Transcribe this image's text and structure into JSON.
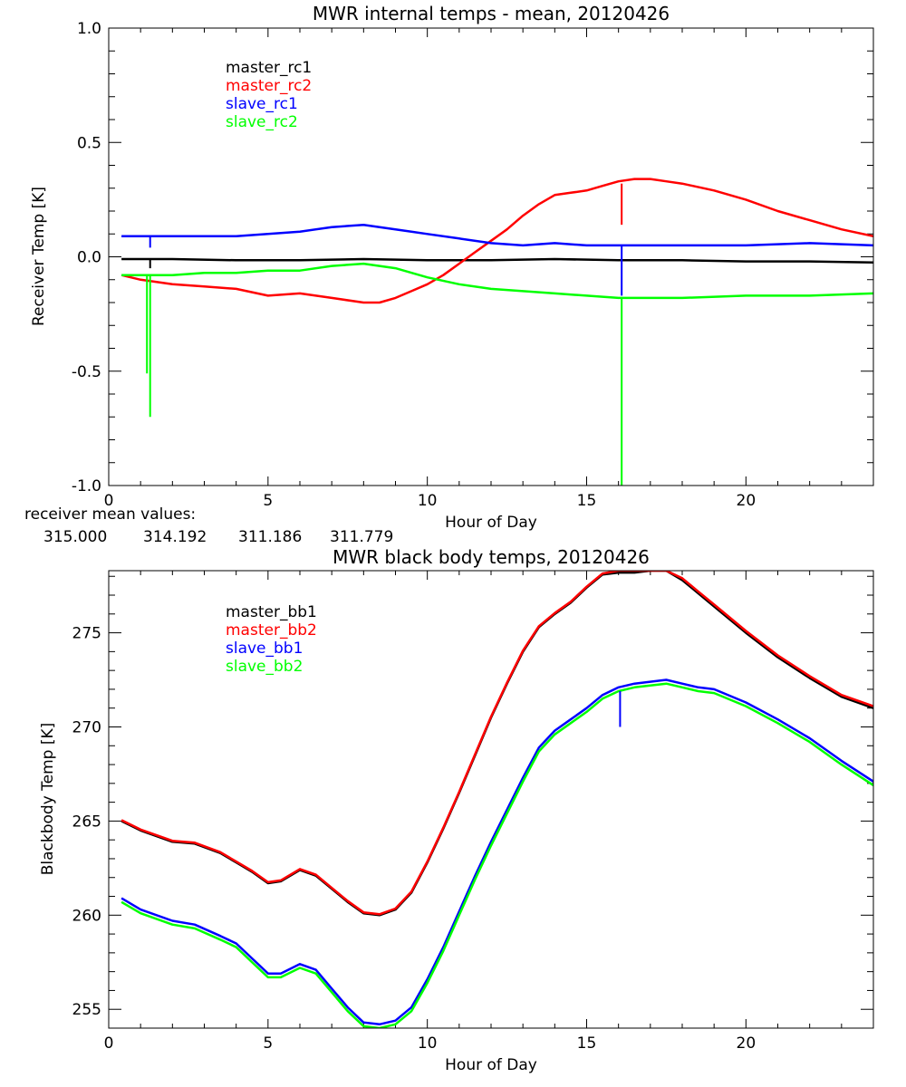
{
  "colors": {
    "black": "#000000",
    "red": "#ff0000",
    "blue": "#0000ff",
    "green": "#00ff00"
  },
  "chart_data": [
    {
      "type": "line",
      "title": "MWR internal temps - mean, 20120426",
      "xlabel": "Hour of Day",
      "ylabel": "Receiver Temp [K]",
      "xlim": [
        0,
        24
      ],
      "ylim": [
        -1.0,
        1.0
      ],
      "xticks": [
        0,
        5,
        10,
        15,
        20
      ],
      "xtick_labels": [
        "0",
        "5",
        "10",
        "15",
        "20"
      ],
      "yticks": [
        -1.0,
        -0.5,
        0.0,
        0.5,
        1.0
      ],
      "ytick_labels": [
        "-1.0",
        "-0.5",
        "0.0",
        "0.5",
        "1.0"
      ],
      "legend_placement": "top-left",
      "series": [
        {
          "name": "master_rc1",
          "color": "#000000",
          "x": [
            0.4,
            2,
            4,
            6,
            8,
            10,
            12,
            14,
            16,
            18,
            20,
            22,
            24
          ],
          "y": [
            -0.01,
            -0.01,
            -0.015,
            -0.015,
            -0.01,
            -0.015,
            -0.015,
            -0.01,
            -0.015,
            -0.015,
            -0.02,
            -0.02,
            -0.025
          ]
        },
        {
          "name": "master_rc2",
          "color": "#ff0000",
          "x": [
            0.4,
            1,
            2,
            3,
            4,
            5,
            6,
            7,
            8,
            8.5,
            9,
            9.5,
            10,
            10.5,
            11,
            11.5,
            12,
            12.5,
            13,
            13.5,
            14,
            14.5,
            15,
            15.5,
            16,
            16.5,
            17,
            17.5,
            18,
            19,
            20,
            21,
            22,
            23,
            24
          ],
          "y": [
            -0.08,
            -0.1,
            -0.12,
            -0.13,
            -0.14,
            -0.17,
            -0.16,
            -0.18,
            -0.2,
            -0.2,
            -0.18,
            -0.15,
            -0.12,
            -0.08,
            -0.03,
            0.02,
            0.07,
            0.12,
            0.18,
            0.23,
            0.27,
            0.28,
            0.29,
            0.31,
            0.33,
            0.34,
            0.34,
            0.33,
            0.32,
            0.29,
            0.25,
            0.2,
            0.16,
            0.12,
            0.09
          ]
        },
        {
          "name": "slave_rc1",
          "color": "#0000ff",
          "x": [
            0.4,
            2,
            4,
            5,
            6,
            7,
            8,
            9,
            10,
            11,
            12,
            13,
            14,
            15,
            16,
            17,
            18,
            20,
            22,
            24
          ],
          "y": [
            0.09,
            0.09,
            0.09,
            0.1,
            0.11,
            0.13,
            0.14,
            0.12,
            0.1,
            0.08,
            0.06,
            0.05,
            0.06,
            0.05,
            0.05,
            0.05,
            0.05,
            0.05,
            0.06,
            0.05
          ]
        },
        {
          "name": "slave_rc2",
          "color": "#00ff00",
          "x": [
            0.4,
            2,
            3,
            4,
            5,
            6,
            7,
            8,
            9,
            10,
            11,
            12,
            13,
            14,
            15,
            16,
            17,
            18,
            20,
            22,
            24
          ],
          "y": [
            -0.08,
            -0.08,
            -0.07,
            -0.07,
            -0.06,
            -0.06,
            -0.04,
            -0.03,
            -0.05,
            -0.09,
            -0.12,
            -0.14,
            -0.15,
            -0.16,
            -0.17,
            -0.18,
            -0.18,
            -0.18,
            -0.17,
            -0.17,
            -0.16
          ]
        }
      ],
      "spikes": [
        {
          "color": "#000000",
          "x": 1.3,
          "y_from": -0.01,
          "y_to": -0.05
        },
        {
          "color": "#0000ff",
          "x": 1.3,
          "y_from": 0.09,
          "y_to": 0.04
        },
        {
          "color": "#00ff00",
          "x": 1.2,
          "y_from": -0.08,
          "y_to": -0.51
        },
        {
          "color": "#00ff00",
          "x": 1.3,
          "y_from": -0.08,
          "y_to": -0.7
        },
        {
          "color": "#ff0000",
          "x": 16.1,
          "y_from": 0.32,
          "y_to": 0.14
        },
        {
          "color": "#0000ff",
          "x": 16.1,
          "y_from": 0.05,
          "y_to": -0.17
        },
        {
          "color": "#00ff00",
          "x": 16.1,
          "y_from": -0.18,
          "y_to": -1.0
        }
      ],
      "mean_values_label": "receiver mean values:",
      "mean_values": [
        {
          "text": "315.000",
          "color": "#000000"
        },
        {
          "text": "314.192",
          "color": "#ff0000"
        },
        {
          "text": "311.186",
          "color": "#0000ff"
        },
        {
          "text": "311.779",
          "color": "#00ff00"
        }
      ]
    },
    {
      "type": "line",
      "title": "MWR black body temps, 20120426",
      "xlabel": "Hour of Day",
      "ylabel": "Blackbody Temp [K]",
      "xlim": [
        0,
        24
      ],
      "ylim": [
        254,
        278.3
      ],
      "xticks": [
        0,
        5,
        10,
        15,
        20
      ],
      "xtick_labels": [
        "0",
        "5",
        "10",
        "15",
        "20"
      ],
      "yticks": [
        255,
        260,
        265,
        270,
        275
      ],
      "ytick_labels": [
        "255",
        "260",
        "265",
        "270",
        "275"
      ],
      "legend_placement": "top-left",
      "series": [
        {
          "name": "master_bb1",
          "color": "#000000",
          "x": [
            0.4,
            1,
            2,
            2.7,
            3.5,
            4,
            4.5,
            5,
            5.4,
            6,
            6.5,
            7,
            7.5,
            8,
            8.5,
            9,
            9.5,
            10,
            10.5,
            11,
            11.5,
            12,
            12.5,
            13,
            13.5,
            14,
            14.5,
            15,
            15.5,
            16,
            16.5,
            17,
            17.5,
            18,
            18.5,
            19,
            20,
            21,
            22,
            23,
            24
          ],
          "y": [
            265,
            264.5,
            263.9,
            263.8,
            263.3,
            262.8,
            262.3,
            261.7,
            261.8,
            262.4,
            262.1,
            261.4,
            260.7,
            260.1,
            260,
            260.3,
            261.2,
            262.8,
            264.6,
            266.5,
            268.5,
            270.5,
            272.3,
            274,
            275.3,
            276,
            276.6,
            277.4,
            278.1,
            278.2,
            278.2,
            278.3,
            278.3,
            277.8,
            277.1,
            276.4,
            275,
            273.7,
            272.6,
            271.6,
            271
          ]
        },
        {
          "name": "master_bb2",
          "color": "#ff0000",
          "x": [
            0.4,
            1,
            2,
            2.7,
            3.5,
            4,
            4.5,
            5,
            5.4,
            6,
            6.5,
            7,
            7.5,
            8,
            8.5,
            9,
            9.5,
            10,
            10.5,
            11,
            11.5,
            12,
            12.5,
            13,
            13.5,
            14,
            14.5,
            15,
            15.5,
            16,
            16.5,
            17,
            17.5,
            18,
            18.5,
            19,
            20,
            21,
            22,
            23,
            24
          ],
          "y": [
            265.05,
            264.55,
            263.95,
            263.85,
            263.35,
            262.85,
            262.35,
            261.75,
            261.85,
            262.45,
            262.15,
            261.45,
            260.75,
            260.15,
            260.05,
            260.35,
            261.25,
            262.85,
            264.65,
            266.55,
            268.55,
            270.55,
            272.35,
            274.05,
            275.35,
            276.05,
            276.65,
            277.45,
            278.15,
            278.3,
            278.3,
            278.3,
            278.3,
            277.9,
            277.2,
            276.5,
            275.1,
            273.8,
            272.7,
            271.7,
            271.1
          ]
        },
        {
          "name": "slave_bb1",
          "color": "#0000ff",
          "x": [
            0.4,
            1,
            2,
            2.7,
            3.5,
            4,
            4.5,
            5,
            5.4,
            6,
            6.5,
            7,
            7.5,
            8,
            8.5,
            9,
            9.5,
            10,
            10.5,
            11,
            11.5,
            12,
            12.5,
            13,
            13.5,
            14,
            14.5,
            15,
            15.5,
            16,
            16.5,
            17,
            17.5,
            18,
            18.5,
            19,
            20,
            21,
            22,
            23,
            24
          ],
          "y": [
            260.9,
            260.3,
            259.7,
            259.5,
            258.9,
            258.5,
            257.7,
            256.9,
            256.9,
            257.4,
            257.1,
            256.1,
            255.1,
            254.3,
            254.2,
            254.4,
            255.1,
            256.6,
            258.3,
            260.2,
            262.1,
            263.9,
            265.6,
            267.3,
            268.9,
            269.8,
            270.4,
            271,
            271.7,
            272.1,
            272.3,
            272.4,
            272.5,
            272.3,
            272.1,
            272,
            271.3,
            270.4,
            269.4,
            268.2,
            267.1
          ]
        },
        {
          "name": "slave_bb2",
          "color": "#00ff00",
          "x": [
            0.4,
            1,
            2,
            2.7,
            3.5,
            4,
            4.5,
            5,
            5.4,
            6,
            6.5,
            7,
            7.5,
            8,
            8.5,
            9,
            9.5,
            10,
            10.5,
            11,
            11.5,
            12,
            12.5,
            13,
            13.5,
            14,
            14.5,
            15,
            15.5,
            16,
            16.5,
            17,
            17.5,
            18,
            18.5,
            19,
            20,
            21,
            22,
            23,
            24
          ],
          "y": [
            260.7,
            260.1,
            259.5,
            259.3,
            258.7,
            258.3,
            257.5,
            256.7,
            256.7,
            257.2,
            256.9,
            255.9,
            254.9,
            254.1,
            254,
            254.2,
            254.9,
            256.4,
            258.1,
            260,
            261.9,
            263.7,
            265.4,
            267.1,
            268.7,
            269.6,
            270.2,
            270.8,
            271.5,
            271.9,
            272.1,
            272.2,
            272.3,
            272.1,
            271.9,
            271.8,
            271.1,
            270.2,
            269.2,
            268,
            266.9
          ]
        }
      ],
      "spikes": [
        {
          "color": "#0000ff",
          "x": 16.05,
          "y_from": 271.9,
          "y_to": 270
        }
      ]
    }
  ]
}
